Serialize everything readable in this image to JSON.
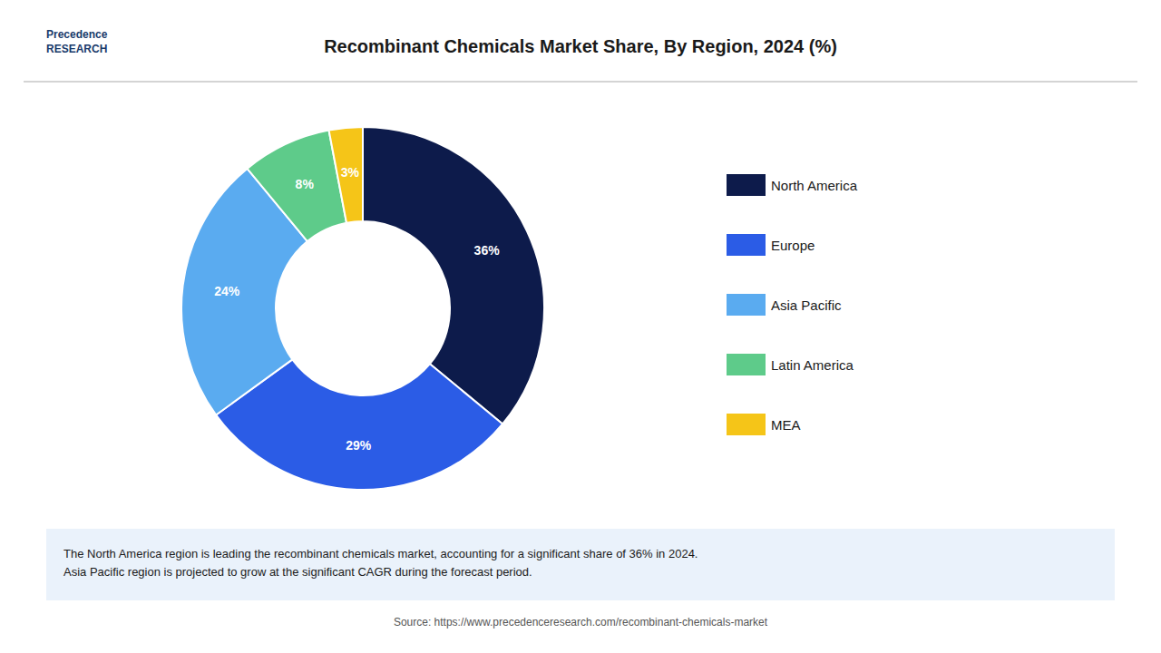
{
  "chart_data": {
    "type": "pie",
    "title": "Recombinant Chemicals Market Share, By Region, 2024 (%)",
    "categories": [
      "North America",
      "Europe",
      "Asia Pacific",
      "Latin America",
      "MEA"
    ],
    "values": [
      36,
      29,
      24,
      8,
      3
    ],
    "value_labels": [
      "36%",
      "29%",
      "24%",
      "8%",
      "3%"
    ],
    "colors": [
      "#0d1b4b",
      "#2b5ce6",
      "#5aabf0",
      "#5ecb8a",
      "#f5c518"
    ],
    "data_labels": true,
    "legend": "right",
    "annotation": "The North America region is leading the recombinant chemicals market, accounting for a significant share of 36% in 2024.\nAsia Pacific region is projected to grow at the significant CAGR during the forecast period.",
    "source": "Source: https://www.precedenceresearch.com/recombinant-chemicals-market",
    "logo": "Precedence\nRESEARCH"
  }
}
